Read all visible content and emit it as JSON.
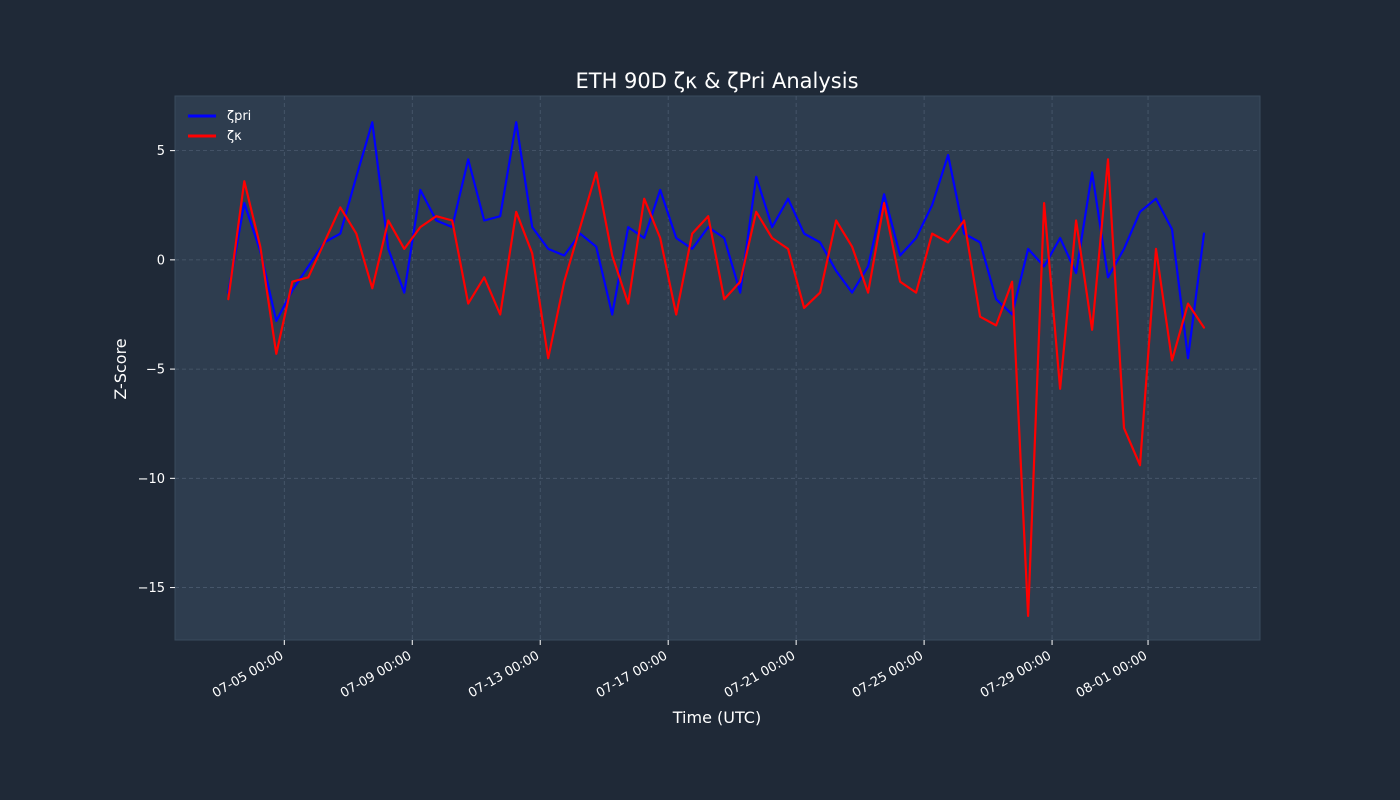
{
  "chart_data": {
    "type": "line",
    "title": "ETH 90D ζκ & ζPri Analysis",
    "xlabel": "Time (UTC)",
    "ylabel": "Z-Score",
    "xlim": [
      "2025-07-01T14:00",
      "2025-08-04T12:00"
    ],
    "ylim": [
      -17.4,
      7.5
    ],
    "x_ticks": [
      {
        "label": "07-05 00:00",
        "value": "2025-07-05T00:00"
      },
      {
        "label": "07-09 00:00",
        "value": "2025-07-09T00:00"
      },
      {
        "label": "07-13 00:00",
        "value": "2025-07-13T00:00"
      },
      {
        "label": "07-17 00:00",
        "value": "2025-07-17T00:00"
      },
      {
        "label": "07-21 00:00",
        "value": "2025-07-21T00:00"
      },
      {
        "label": "07-25 00:00",
        "value": "2025-07-25T00:00"
      },
      {
        "label": "07-29 00:00",
        "value": "2025-07-29T00:00"
      },
      {
        "label": "08-01 00:00",
        "value": "2025-08-01T00:00"
      }
    ],
    "y_ticks": [
      5,
      0,
      -5,
      -10,
      -15
    ],
    "grid": true,
    "legend_position": "upper-left",
    "x": [
      "2025-07-03T06:00",
      "2025-07-03T18:00",
      "2025-07-04T06:00",
      "2025-07-04T18:00",
      "2025-07-05T06:00",
      "2025-07-05T18:00",
      "2025-07-06T06:00",
      "2025-07-06T18:00",
      "2025-07-07T06:00",
      "2025-07-07T18:00",
      "2025-07-08T06:00",
      "2025-07-08T18:00",
      "2025-07-09T06:00",
      "2025-07-09T18:00",
      "2025-07-10T06:00",
      "2025-07-10T18:00",
      "2025-07-11T06:00",
      "2025-07-11T18:00",
      "2025-07-12T06:00",
      "2025-07-12T18:00",
      "2025-07-13T06:00",
      "2025-07-13T18:00",
      "2025-07-14T06:00",
      "2025-07-14T18:00",
      "2025-07-15T06:00",
      "2025-07-15T18:00",
      "2025-07-16T06:00",
      "2025-07-16T18:00",
      "2025-07-17T06:00",
      "2025-07-17T18:00",
      "2025-07-18T06:00",
      "2025-07-18T18:00",
      "2025-07-19T06:00",
      "2025-07-19T18:00",
      "2025-07-20T06:00",
      "2025-07-20T18:00",
      "2025-07-21T06:00",
      "2025-07-21T18:00",
      "2025-07-22T06:00",
      "2025-07-22T18:00",
      "2025-07-23T06:00",
      "2025-07-23T18:00",
      "2025-07-24T06:00",
      "2025-07-24T18:00",
      "2025-07-25T06:00",
      "2025-07-25T18:00",
      "2025-07-26T06:00",
      "2025-07-26T18:00",
      "2025-07-27T06:00",
      "2025-07-27T18:00",
      "2025-07-28T06:00",
      "2025-07-28T18:00",
      "2025-07-29T06:00",
      "2025-07-29T18:00",
      "2025-07-30T06:00",
      "2025-07-30T18:00",
      "2025-07-31T06:00",
      "2025-07-31T18:00",
      "2025-08-01T06:00",
      "2025-08-01T18:00",
      "2025-08-02T06:00",
      "2025-08-02T18:00"
    ],
    "series": [
      {
        "name": "ζpri",
        "color": "#0000ff",
        "values": [
          -1.5,
          2.6,
          0.4,
          -2.8,
          -1.4,
          -0.3,
          0.8,
          1.2,
          3.8,
          6.3,
          0.5,
          -1.5,
          3.2,
          1.8,
          1.5,
          4.6,
          1.8,
          2.0,
          6.3,
          1.5,
          0.5,
          0.2,
          1.2,
          0.6,
          -2.5,
          1.5,
          1.0,
          3.2,
          1.0,
          0.5,
          1.5,
          1.0,
          -1.5,
          3.8,
          1.5,
          2.8,
          1.2,
          0.8,
          -0.5,
          -1.5,
          -0.3,
          3.0,
          0.2,
          1.0,
          2.5,
          4.8,
          1.2,
          0.8,
          -1.8,
          -2.5,
          0.5,
          -0.3,
          1.0,
          -0.6,
          4.0,
          -0.8,
          0.5,
          2.2,
          2.8,
          1.4,
          -4.5,
          1.2
        ]
      },
      {
        "name": "ζκ",
        "color": "#ff0000",
        "values": [
          -1.8,
          3.6,
          0.6,
          -4.3,
          -1.0,
          -0.8,
          0.8,
          2.4,
          1.2,
          -1.3,
          1.8,
          0.5,
          1.5,
          2.0,
          1.8,
          -2.0,
          -0.8,
          -2.5,
          2.2,
          0.3,
          -4.5,
          -1.0,
          1.5,
          4.0,
          0.2,
          -2.0,
          2.8,
          1.0,
          -2.5,
          1.2,
          2.0,
          -1.8,
          -1.0,
          2.2,
          1.0,
          0.5,
          -2.2,
          -1.5,
          1.8,
          0.6,
          -1.5,
          2.6,
          -1.0,
          -1.5,
          1.2,
          0.8,
          1.8,
          -2.6,
          -3.0,
          -1.0,
          -16.3,
          2.6,
          -5.9,
          1.8,
          -3.2,
          4.6,
          -7.7,
          -9.4,
          0.5,
          -4.6,
          -2.0,
          -3.1
        ]
      }
    ]
  }
}
